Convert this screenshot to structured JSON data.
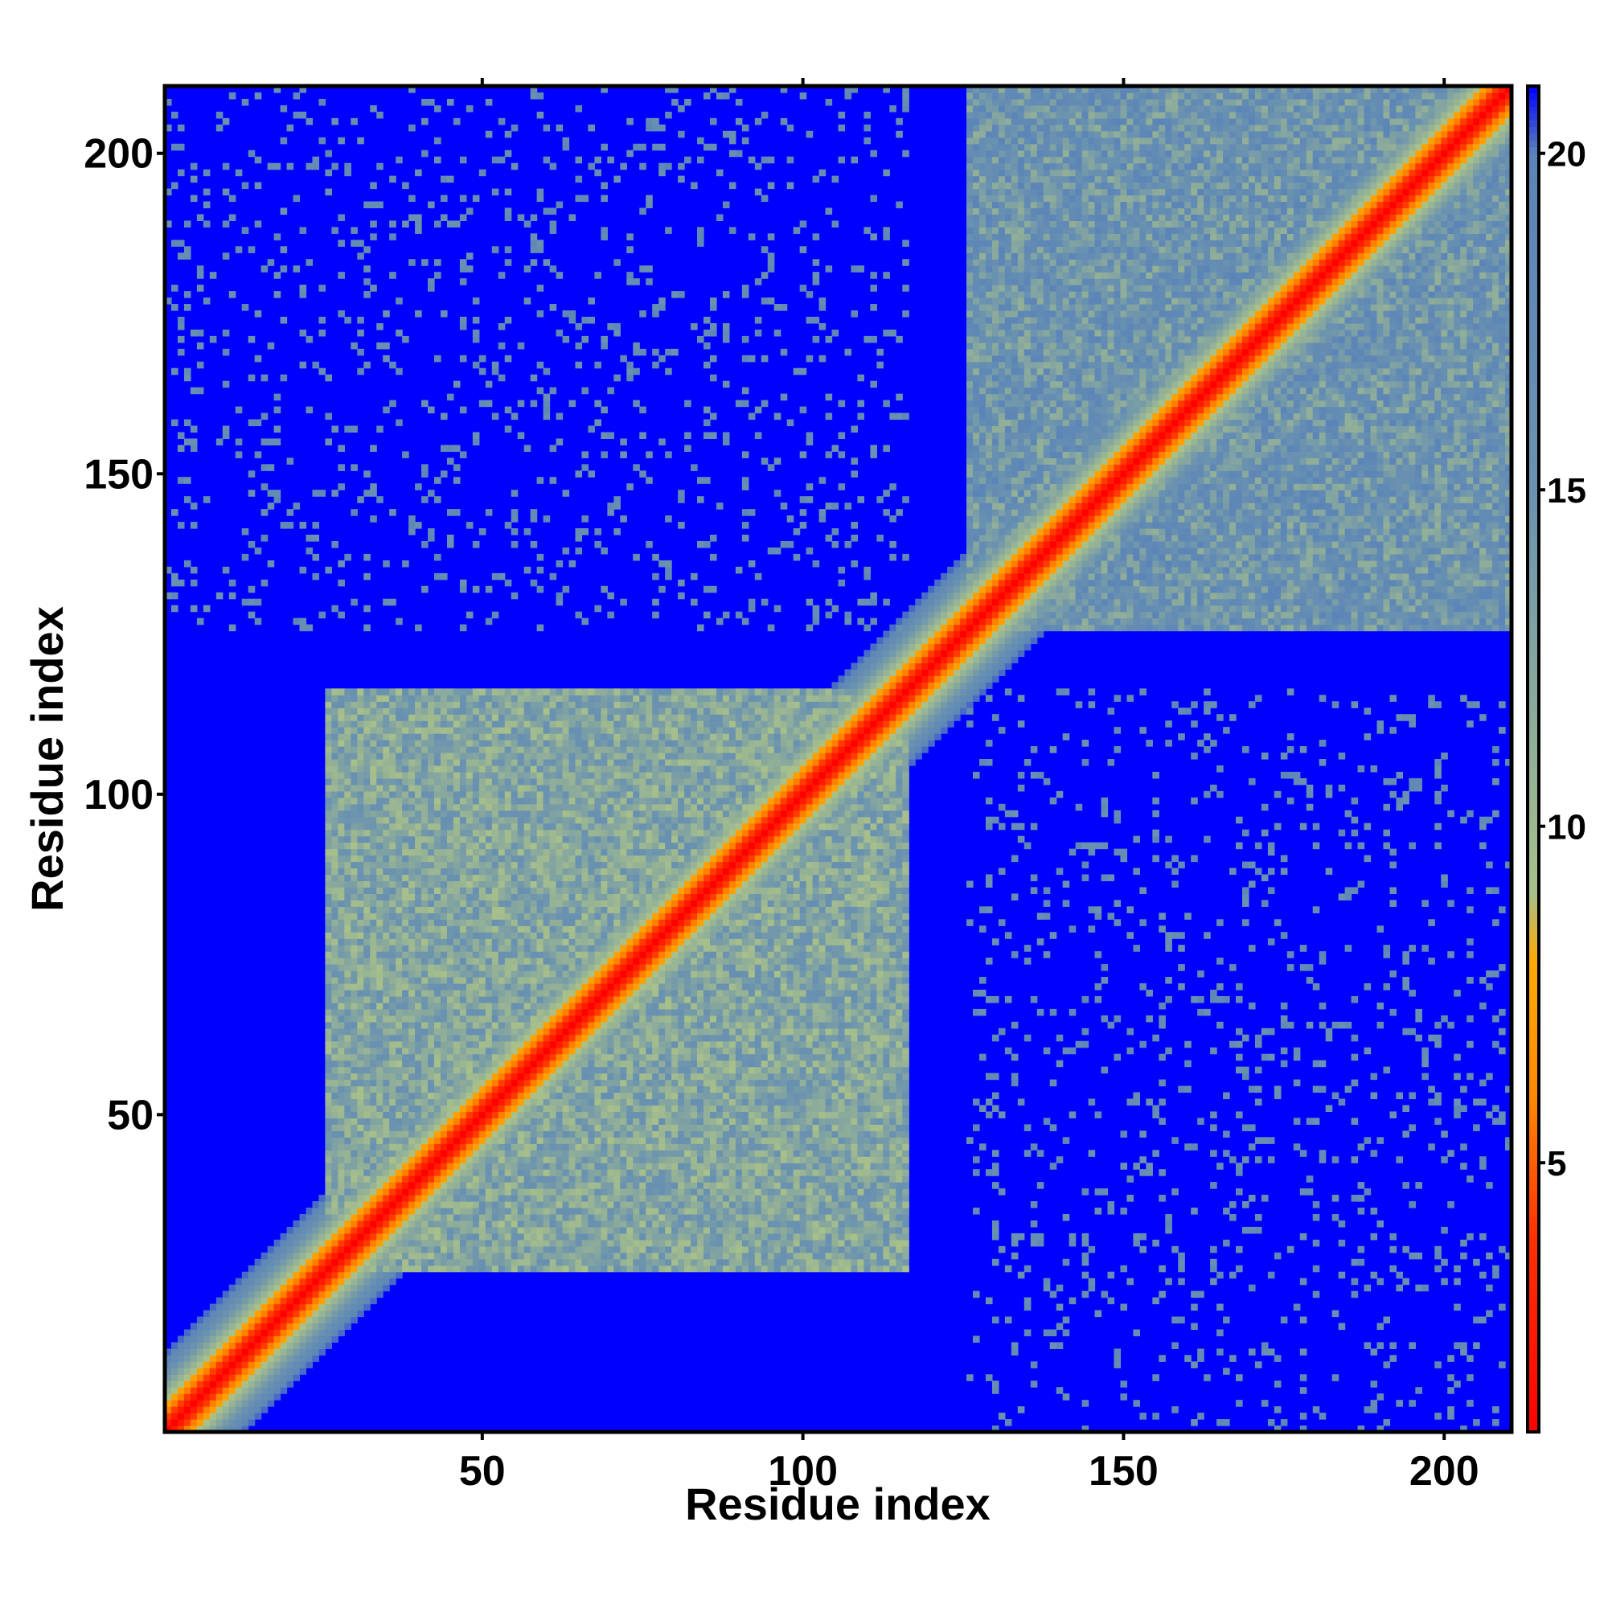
{
  "chart_data": {
    "type": "heatmap",
    "title": "",
    "xlabel": "Residue index",
    "ylabel": "Residue index",
    "n_residues": 210,
    "xlim": [
      1,
      210
    ],
    "ylim": [
      1,
      210
    ],
    "x_ticks": [
      50,
      100,
      150,
      200
    ],
    "y_ticks": [
      50,
      100,
      150,
      200
    ],
    "colorbar": {
      "range": [
        1,
        21
      ],
      "ticks": [
        5,
        10,
        15,
        20
      ],
      "stops": [
        {
          "value": 1,
          "color": "#ff0000"
        },
        {
          "value": 4,
          "color": "#ff3300"
        },
        {
          "value": 6,
          "color": "#ff8800"
        },
        {
          "value": 8,
          "color": "#ffaa00"
        },
        {
          "value": 9,
          "color": "#a8c08a"
        },
        {
          "value": 15,
          "color": "#6a92b0"
        },
        {
          "value": 20,
          "color": "#5b84b8"
        },
        {
          "value": 21,
          "color": "#0000ff"
        }
      ]
    },
    "description_free_structure": {
      "diagonal": "contact distance rises from ~1 on the diagonal to ~21 (cutoff) away from it",
      "domains": [
        {
          "range": [
            26,
            116
          ],
          "note": "large compact domain"
        },
        {
          "range": [
            126,
            210
          ],
          "note": "smaller domain"
        }
      ]
    }
  },
  "colors": {
    "background_far": "#0000ff",
    "mid_contact": "#5b84b8",
    "near_contact": "#a8c08a",
    "close_contact": "#ffa500",
    "diagonal": "#ff0000"
  }
}
